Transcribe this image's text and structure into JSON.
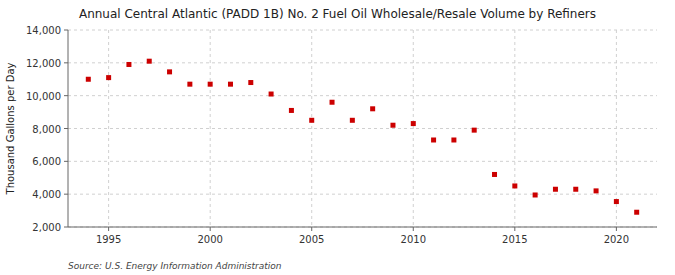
{
  "chart_data": {
    "type": "scatter",
    "title": "Annual Central Atlantic (PADD 1B) No. 2 Fuel Oil Wholesale/Resale Volume by Refiners",
    "ylabel": "Thousand Gallons per Day",
    "annotations": [
      "Source: U.S. Energy Information Administration"
    ],
    "x": [
      1994,
      1995,
      1996,
      1997,
      1998,
      1999,
      2000,
      2001,
      2002,
      2003,
      2004,
      2005,
      2006,
      2007,
      2008,
      2009,
      2010,
      2011,
      2012,
      2013,
      2014,
      2015,
      2016,
      2017,
      2018,
      2019,
      2020,
      2021
    ],
    "values": [
      11000,
      11100,
      11900,
      12100,
      11450,
      10700,
      10700,
      10700,
      10800,
      10100,
      9100,
      8500,
      9600,
      8500,
      9200,
      8200,
      8300,
      7300,
      7300,
      7900,
      5200,
      4500,
      3950,
      4300,
      4300,
      4200,
      3550,
      2900
    ],
    "color": "#cc0000",
    "marker": "square",
    "grid": true,
    "xlim": [
      1993,
      2022
    ],
    "xticks": [
      1995,
      2000,
      2005,
      2010,
      2015,
      2020
    ],
    "ylim": [
      2000,
      14000
    ],
    "yticks": [
      {
        "value": 2000,
        "label": "2,000"
      },
      {
        "value": 4000,
        "label": "4,000"
      },
      {
        "value": 6000,
        "label": "6,000"
      },
      {
        "value": 8000,
        "label": "8,000"
      },
      {
        "value": 10000,
        "label": "10,000"
      },
      {
        "value": 12000,
        "label": "12,000"
      },
      {
        "value": 14000,
        "label": "14,000"
      }
    ]
  }
}
